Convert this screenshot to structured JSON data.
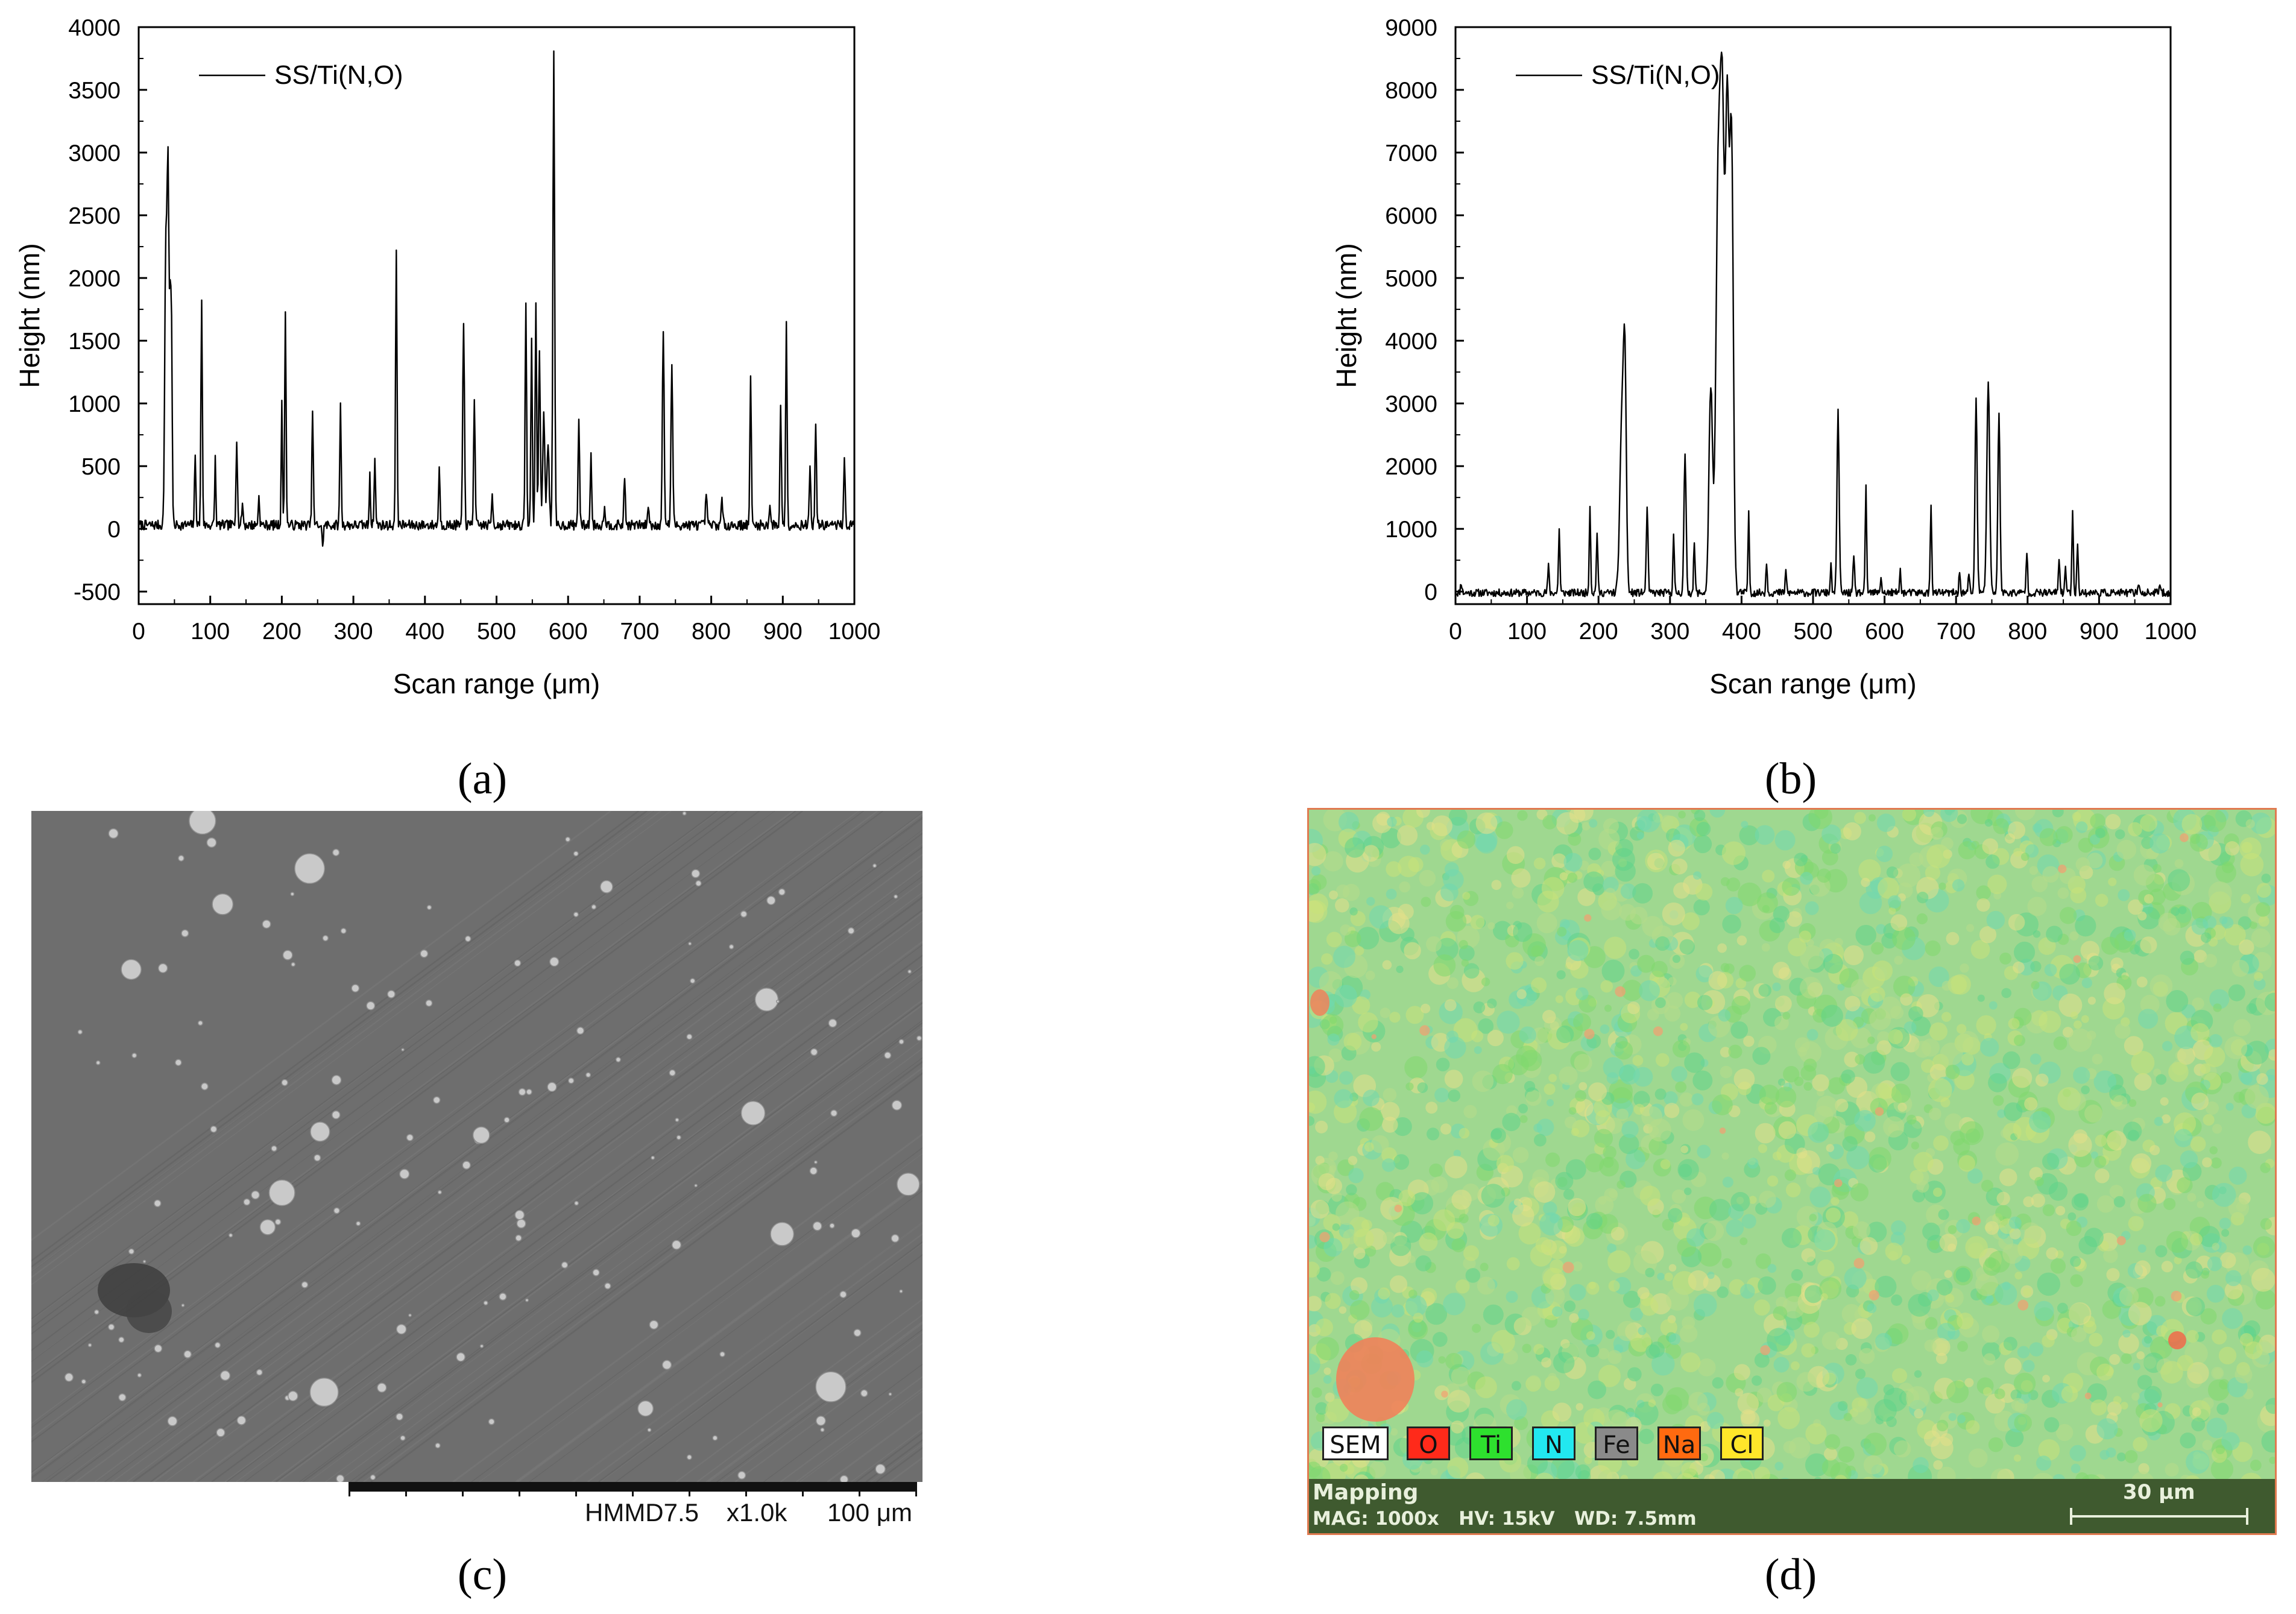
{
  "chart_data": [
    {
      "type": "line",
      "panel": "a",
      "title": "",
      "xlabel": "Scan range (μm)",
      "ylabel": "Height (nm)",
      "xlim": [
        0,
        1000
      ],
      "ylim": [
        -600,
        4000
      ],
      "xticks": [
        "0",
        "100",
        "200",
        "300",
        "400",
        "500",
        "600",
        "700",
        "800",
        "900",
        "1000"
      ],
      "yticks": [
        "-500",
        "0",
        "500",
        "1000",
        "1500",
        "2000",
        "2500",
        "3000",
        "3500",
        "4000"
      ],
      "legend": "SS/Ti(N,O)",
      "legend_position": "top-left",
      "series": [
        {
          "name": "SS/Ti(N,O)",
          "baseline": 30,
          "noise": 40,
          "seed": 7,
          "peaks": [
            [
              38,
              2300,
              1.5
            ],
            [
              41,
              2680,
              1.2
            ],
            [
              44,
              1720,
              1.2
            ],
            [
              46,
              1250,
              1.0
            ],
            [
              79,
              570,
              1.0
            ],
            [
              88,
              1830,
              1.0
            ],
            [
              107,
              570,
              0.8
            ],
            [
              137,
              730,
              1.0
            ],
            [
              145,
              200,
              1.0
            ],
            [
              168,
              250,
              1.0
            ],
            [
              200,
              1050,
              0.8
            ],
            [
              205,
              1700,
              1.0
            ],
            [
              243,
              960,
              1.0
            ],
            [
              257,
              -130,
              1.0
            ],
            [
              282,
              980,
              1.0
            ],
            [
              323,
              460,
              0.8
            ],
            [
              330,
              540,
              1.0
            ],
            [
              360,
              2230,
              1.0
            ],
            [
              420,
              480,
              1.0
            ],
            [
              454,
              1620,
              1.2
            ],
            [
              469,
              1060,
              1.0
            ],
            [
              494,
              270,
              1.0
            ],
            [
              541,
              1830,
              1.0
            ],
            [
              549,
              1500,
              1.0
            ],
            [
              555,
              1800,
              1.0
            ],
            [
              560,
              1380,
              1.2
            ],
            [
              566,
              900,
              1.5
            ],
            [
              572,
              700,
              1.5
            ],
            [
              580,
              3770,
              1.2
            ],
            [
              615,
              900,
              1.0
            ],
            [
              632,
              580,
              1.0
            ],
            [
              651,
              200,
              1.0
            ],
            [
              679,
              420,
              1.0
            ],
            [
              712,
              190,
              1.0
            ],
            [
              733,
              1600,
              1.2
            ],
            [
              745,
              1320,
              1.2
            ],
            [
              793,
              290,
              1.0
            ],
            [
              815,
              240,
              1.0
            ],
            [
              855,
              1200,
              1.0
            ],
            [
              882,
              200,
              1.0
            ],
            [
              897,
              1000,
              1.0
            ],
            [
              905,
              1640,
              1.0
            ],
            [
              938,
              500,
              1.0
            ],
            [
              946,
              860,
              1.0
            ],
            [
              986,
              580,
              1.0
            ]
          ]
        }
      ]
    },
    {
      "type": "line",
      "panel": "b",
      "title": "",
      "xlabel": "Scan range (μm)",
      "ylabel": "Height (nm)",
      "xlim": [
        0,
        1000
      ],
      "ylim": [
        -200,
        9000
      ],
      "xticks": [
        "0",
        "100",
        "200",
        "300",
        "400",
        "500",
        "600",
        "700",
        "800",
        "900",
        "1000"
      ],
      "yticks": [
        "0",
        "1000",
        "2000",
        "3000",
        "4000",
        "5000",
        "6000",
        "7000",
        "8000",
        "9000"
      ],
      "legend": "SS/Ti(N,O)",
      "legend_position": "top-left",
      "series": [
        {
          "name": "SS/Ti(N,O)",
          "baseline": -20,
          "noise": 60,
          "seed": 11,
          "peaks": [
            [
              8,
              150,
              1.0
            ],
            [
              130,
              400,
              1.0
            ],
            [
              145,
              1000,
              1.0
            ],
            [
              188,
              1350,
              1.0
            ],
            [
              198,
              950,
              1.0
            ],
            [
              233,
              2800,
              3.0
            ],
            [
              237,
              2900,
              2.0
            ],
            [
              268,
              1350,
              1.2
            ],
            [
              305,
              900,
              1.0
            ],
            [
              321,
              2150,
              1.5
            ],
            [
              334,
              780,
              1.0
            ],
            [
              357,
              3300,
              2.5
            ],
            [
              367,
              6000,
              3.0
            ],
            [
              373,
              7500,
              3.0
            ],
            [
              380,
              7300,
              2.5
            ],
            [
              386,
              7200,
              2.5
            ],
            [
              410,
              1230,
              1.0
            ],
            [
              435,
              450,
              1.0
            ],
            [
              462,
              320,
              1.0
            ],
            [
              525,
              400,
              1.0
            ],
            [
              535,
              2850,
              1.5
            ],
            [
              557,
              560,
              1.0
            ],
            [
              574,
              1650,
              1.0
            ],
            [
              595,
              230,
              1.0
            ],
            [
              622,
              330,
              1.0
            ],
            [
              665,
              1400,
              1.0
            ],
            [
              705,
              300,
              1.0
            ],
            [
              718,
              280,
              1.0
            ],
            [
              728,
              3050,
              1.5
            ],
            [
              745,
              3300,
              2.0
            ],
            [
              760,
              2850,
              1.5
            ],
            [
              799,
              650,
              1.0
            ],
            [
              844,
              550,
              1.0
            ],
            [
              853,
              400,
              1.0
            ],
            [
              863,
              1300,
              1.0
            ],
            [
              870,
              780,
              1.0
            ],
            [
              955,
              150,
              1.0
            ],
            [
              985,
              120,
              1.0
            ]
          ]
        }
      ]
    }
  ],
  "captions": {
    "a": "(a)",
    "b": "(b)",
    "c": "(c)",
    "d": "(d)"
  },
  "sem_image": {
    "instrument_label": "HMMD7.5",
    "magnification": "x1.0k",
    "scale_bar": "100 μm"
  },
  "eds_map": {
    "legend": [
      "SEM",
      "O",
      "Ti",
      "N",
      "Fe",
      "Na",
      "Cl"
    ],
    "legend_colors": {
      "SEM": "#ffffff",
      "O": "#ff2a1a",
      "Ti": "#2ee02e",
      "N": "#22e8f0",
      "Fe": "#8a8a8a",
      "Na": "#ff6a10",
      "Cl": "#ffe62a"
    },
    "footer_title": "Mapping",
    "footer_meta": "MAG: 1000x   HV: 15kV   WD: 7.5mm",
    "scale_bar": "30 μm"
  }
}
